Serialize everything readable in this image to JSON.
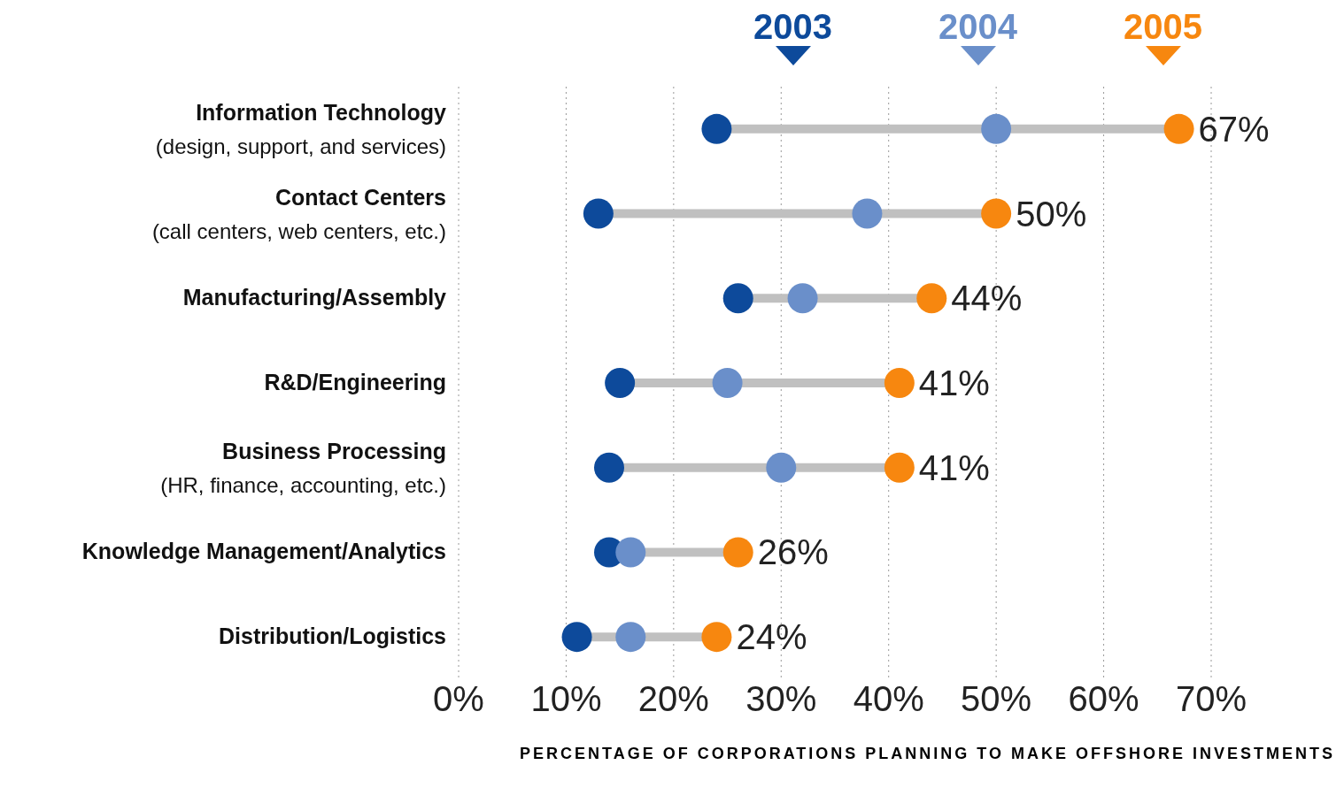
{
  "chart_data": {
    "type": "scatter",
    "orientation": "horizontal",
    "categories": [
      "Information Technology\n(design, support, and services)",
      "Contact Centers\n(call centers, web centers, etc.)",
      "Manufacturing/Assembly",
      "R&D/Engineering",
      "Business Processing\n(HR, finance, accounting, etc.)",
      "Knowledge Management/Analytics",
      "Distribution/Logistics"
    ],
    "xlabel": "PERCENTAGE OF CORPORATIONS PLANNING TO MAKE OFFSHORE INVESTMENTS",
    "xlim": [
      0,
      70
    ],
    "xticks": [
      {
        "value": 0,
        "label": "0%"
      },
      {
        "value": 10,
        "label": "10%"
      },
      {
        "value": 20,
        "label": "20%"
      },
      {
        "value": 30,
        "label": "30%"
      },
      {
        "value": 40,
        "label": "40%"
      },
      {
        "value": 50,
        "label": "50%"
      },
      {
        "value": 60,
        "label": "60%"
      },
      {
        "value": 70,
        "label": "70%"
      }
    ],
    "grid": "x",
    "legend": "top",
    "marker": "circle",
    "series": [
      {
        "name": "2003",
        "color": "#0d4a9b",
        "values": [
          24,
          13,
          26,
          15,
          14,
          14,
          11
        ]
      },
      {
        "name": "2004",
        "color": "#6a8fca",
        "values": [
          50,
          38,
          32,
          25,
          30,
          16,
          16
        ]
      },
      {
        "name": "2005",
        "color": "#f7870f",
        "values": [
          67,
          50,
          44,
          41,
          41,
          26,
          24
        ],
        "value_labels": [
          "67%",
          "50%",
          "44%",
          "41%",
          "41%",
          "26%",
          "24%"
        ]
      }
    ]
  }
}
